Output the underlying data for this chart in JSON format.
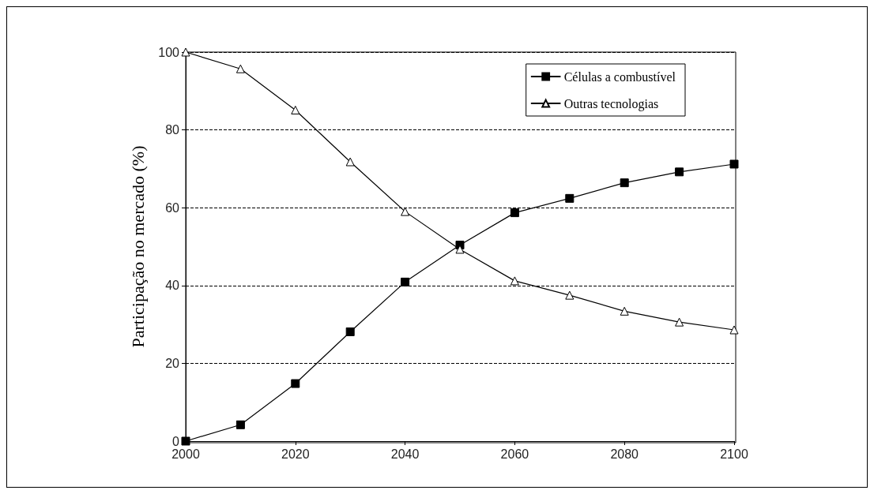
{
  "chart_data": {
    "type": "line",
    "ylabel": "Participação no mercado (%)",
    "x": [
      2000,
      2010,
      2020,
      2030,
      2040,
      2050,
      2060,
      2070,
      2080,
      2090,
      2100
    ],
    "series": [
      {
        "name": "Células a combustível",
        "color": "#000000",
        "marker": "square",
        "values": [
          0,
          4.2,
          14.8,
          28.1,
          40.9,
          50.4,
          58.7,
          62.4,
          66.4,
          69.2,
          71.2
        ]
      },
      {
        "name": "Outras tecnologias",
        "color": "#000000",
        "marker": "triangle",
        "values": [
          100,
          95.7,
          85.1,
          71.8,
          59,
          49.3,
          41.2,
          37.5,
          33.4,
          30.6,
          28.6
        ]
      }
    ],
    "xlim": [
      2000,
      2100
    ],
    "xticks": [
      2000,
      2020,
      2040,
      2060,
      2080,
      2100
    ],
    "ylim": [
      0,
      100
    ],
    "yticks": [
      0,
      20,
      40,
      60,
      80,
      100
    ],
    "grid": "y",
    "legend": "top right",
    "line_style": "solid"
  }
}
